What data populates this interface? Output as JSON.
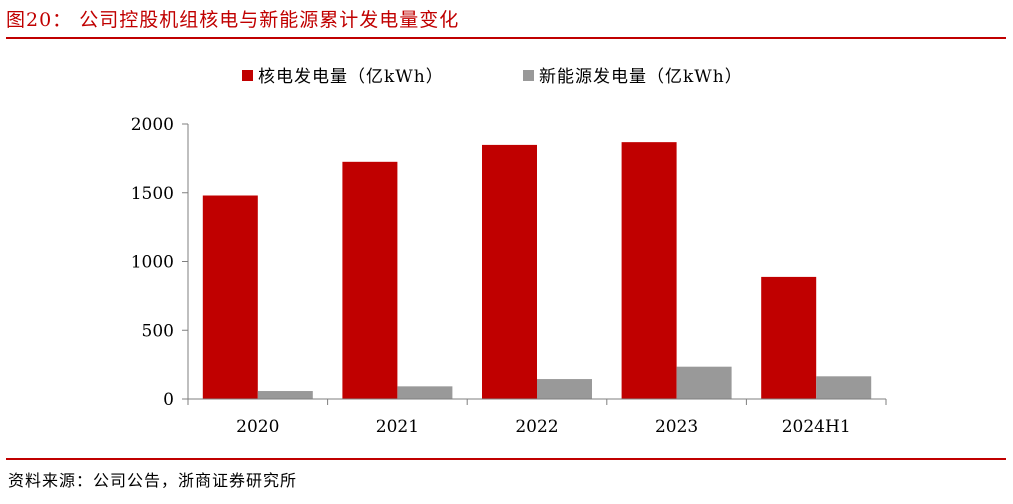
{
  "figure": {
    "title": "图20：  公司控股机组核电与新能源累计发电量变化",
    "source": "资料来源：公司公告，浙商证券研究所"
  },
  "colors": {
    "accent": "#c00000",
    "nuclear": "#c00000",
    "renewable": "#999999",
    "axis": "#7f7f7f"
  },
  "chart_data": {
    "type": "bar",
    "title": "图20：  公司控股机组核电与新能源累计发电量变化",
    "categories": [
      "2020",
      "2021",
      "2022",
      "2023",
      "2024H1"
    ],
    "series": [
      {
        "name": "核电发电量（亿kWh）",
        "values": [
          1480,
          1725,
          1848,
          1868,
          888
        ]
      },
      {
        "name": "新能源发电量（亿kWh）",
        "values": [
          58,
          92,
          145,
          235,
          165
        ]
      }
    ],
    "ylim": [
      0,
      2000
    ],
    "yticks": [
      0,
      500,
      1000,
      1500,
      2000
    ],
    "grid": false,
    "legend": "top-center",
    "xlabel": "",
    "ylabel": ""
  }
}
